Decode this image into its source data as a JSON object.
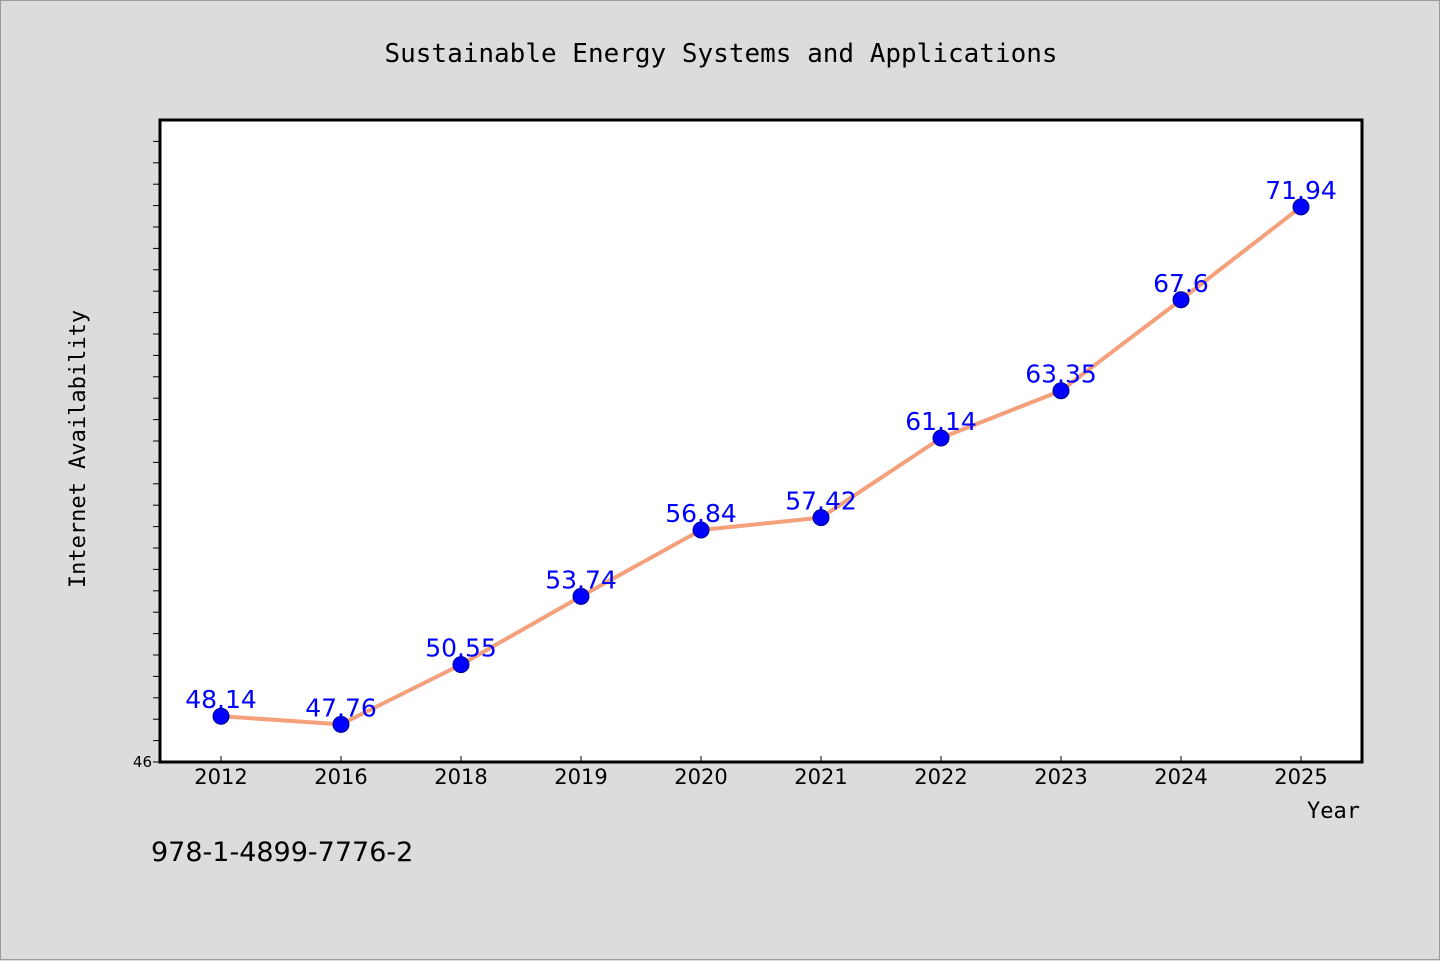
{
  "colors": {
    "background": "#dcdcdc",
    "plot_background": "#ffffff",
    "line": "#f4a07a",
    "marker": "#0000ff",
    "data_label": "#0000ff"
  },
  "isbn": "978-1-4899-7776-2",
  "chart_data": {
    "type": "line",
    "title": "Sustainable Energy Systems and Applications",
    "xlabel": "Year",
    "ylabel": "Internet Availability",
    "categories": [
      "2012",
      "2016",
      "2018",
      "2019",
      "2020",
      "2021",
      "2022",
      "2023",
      "2024",
      "2025"
    ],
    "series": [
      {
        "values": [
          48.14,
          47.76,
          50.55,
          53.74,
          56.84,
          57.42,
          61.14,
          63.35,
          67.6,
          71.94
        ]
      }
    ],
    "ylim": [
      46,
      76
    ],
    "yticks_labeled": [
      "46"
    ],
    "grid": false,
    "legend": "none"
  }
}
